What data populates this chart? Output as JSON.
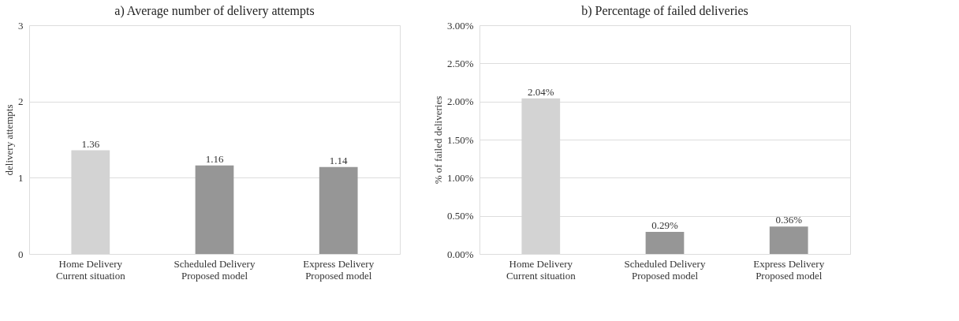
{
  "chart_data": [
    {
      "type": "bar",
      "title": "a) Average number of delivery attempts",
      "ylabel": "delivery attempts",
      "categories": [
        "Home Delivery\nCurrent situation",
        "Scheduled Delivery\nProposed model",
        "Express Delivery\nProposed model"
      ],
      "values": [
        1.36,
        1.16,
        1.14
      ],
      "colors": [
        "#d3d3d3",
        "#969696",
        "#969696"
      ],
      "ylim": [
        0,
        3
      ],
      "yticks": [
        0,
        1,
        2,
        3
      ],
      "grid": "y",
      "data_labels": true
    },
    {
      "type": "bar",
      "title": "b) Percentage of failed deliveries",
      "ylabel": "% of failed deliveries",
      "categories": [
        "Home Delivery\nCurrent situation",
        "Scheduled Delivery\nProposed model",
        "Express Delivery\nProposed model"
      ],
      "values": [
        2.04,
        0.29,
        0.36
      ],
      "colors": [
        "#d3d3d3",
        "#969696",
        "#969696"
      ],
      "value_labels": [
        "2.04%",
        "0.29%",
        "0.36%"
      ],
      "ylim": [
        0,
        3
      ],
      "yticks": [
        {
          "value": 0,
          "label": "0.00%"
        },
        {
          "value": 0.5,
          "label": "0.50%"
        },
        {
          "value": 1,
          "label": "1.00%"
        },
        {
          "value": 1.5,
          "label": "1.50%"
        },
        {
          "value": 2,
          "label": "2.00%"
        },
        {
          "value": 2.5,
          "label": "2.50%"
        },
        {
          "value": 3,
          "label": "3.00%"
        }
      ],
      "grid": "y"
    }
  ]
}
